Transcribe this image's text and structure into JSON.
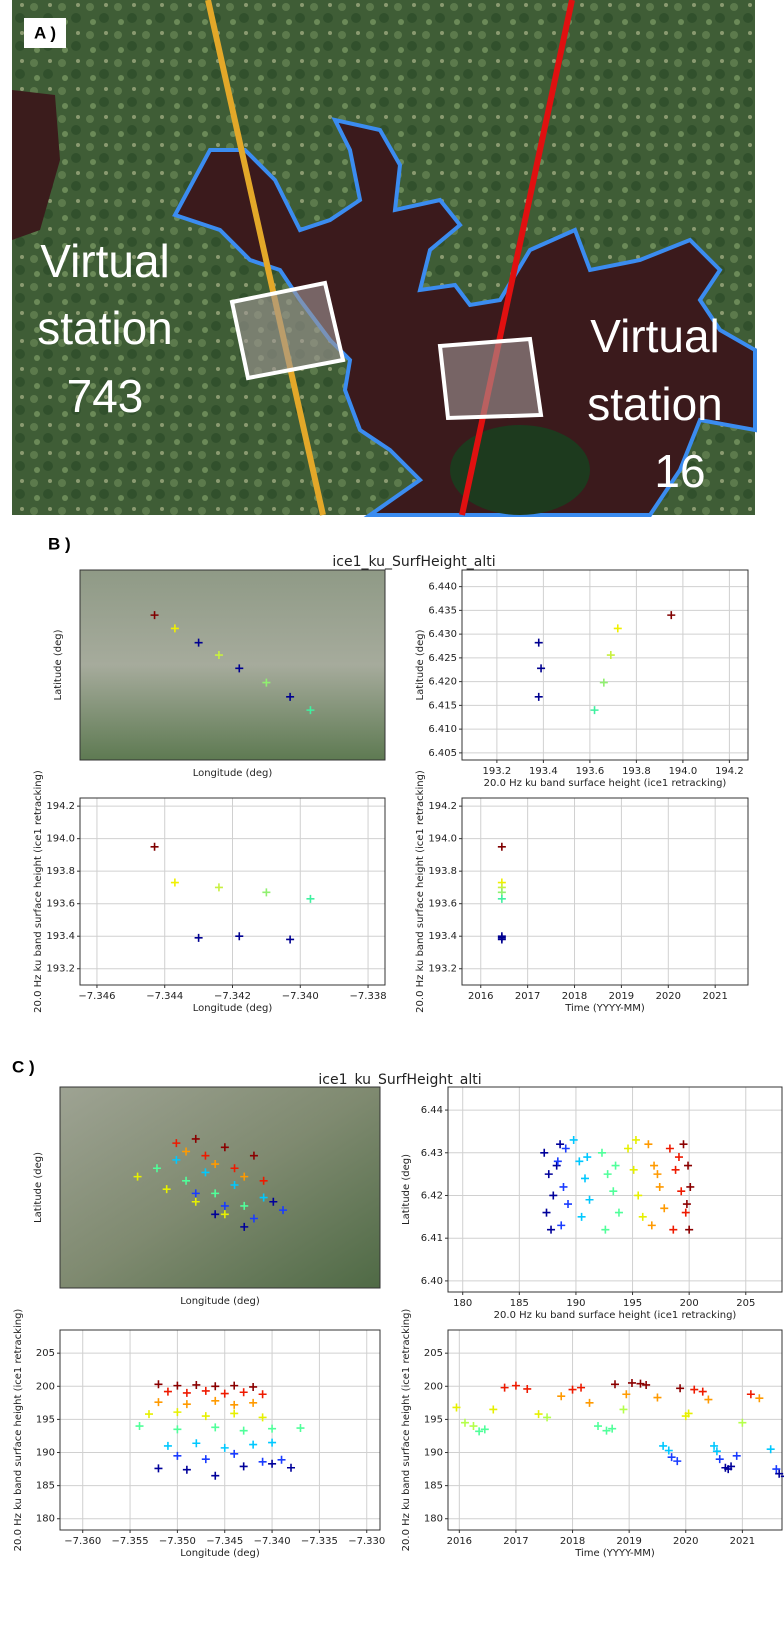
{
  "panel_a": {
    "label": "A )",
    "annotations": [
      [
        "Virtual",
        "station",
        "743"
      ],
      [
        "Virtual",
        "station",
        "16"
      ]
    ]
  },
  "panel_b": {
    "label": "B )",
    "title": "ice1_ku_SurfHeight_alti"
  },
  "panel_c": {
    "label": "C )",
    "title": "ice1_ku_SurfHeight_alti"
  },
  "chart_data": [
    {
      "type": "scatter",
      "xlabel": "Longitude (deg)",
      "ylabel": "Latitude (deg)",
      "xlim": [
        -7.3465,
        -7.3375
      ],
      "ylim": [
        6.4035,
        6.4435
      ],
      "grid": false,
      "series": [
        {
          "color": "#800000",
          "x": [
            -7.3443
          ],
          "values": [
            6.434
          ]
        },
        {
          "color": "#f0f000",
          "x": [
            -7.3437
          ],
          "values": [
            6.4312
          ]
        },
        {
          "color": "#000090",
          "x": [
            -7.343,
            -7.3418,
            -7.3403
          ],
          "values": [
            6.4282,
            6.4228,
            6.4168
          ]
        },
        {
          "color": "#c8f040",
          "x": [
            -7.3424
          ],
          "values": [
            6.4256
          ]
        },
        {
          "color": "#90f070",
          "x": [
            -7.341
          ],
          "values": [
            6.4198
          ]
        },
        {
          "color": "#40f0a0",
          "x": [
            -7.3397
          ],
          "values": [
            6.414
          ]
        }
      ]
    },
    {
      "type": "scatter",
      "xlabel": "20.0 Hz ku band surface height (ice1 retracking)",
      "ylabel": "Latitude (deg)",
      "xlim": [
        193.05,
        194.28
      ],
      "ylim": [
        6.4035,
        6.4435
      ],
      "grid": true,
      "xticks": [
        193.2,
        193.4,
        193.6,
        193.8,
        {
          "value": 194,
          "label": "194.0"
        },
        194.2
      ],
      "yticks": [
        6.405,
        {
          "value": 6.41,
          "label": "6.410"
        },
        6.415,
        {
          "value": 6.42,
          "label": "6.420"
        },
        6.425,
        {
          "value": 6.43,
          "label": "6.430"
        },
        6.435,
        {
          "value": 6.44,
          "label": "6.440"
        }
      ],
      "series": [
        {
          "color": "#800000",
          "x": [
            193.95
          ],
          "values": [
            6.434
          ]
        },
        {
          "color": "#f0f000",
          "x": [
            193.72
          ],
          "values": [
            6.4312
          ]
        },
        {
          "color": "#000090",
          "x": [
            193.38,
            193.39,
            193.38
          ],
          "values": [
            6.4282,
            6.4228,
            6.4168
          ]
        },
        {
          "color": "#c8f040",
          "x": [
            193.69
          ],
          "values": [
            6.4256
          ]
        },
        {
          "color": "#90f070",
          "x": [
            193.66
          ],
          "values": [
            6.4198
          ]
        },
        {
          "color": "#40f0a0",
          "x": [
            193.62
          ],
          "values": [
            6.414
          ]
        }
      ]
    },
    {
      "type": "scatter",
      "xlabel": "Longitude (deg)",
      "ylabel": "20.0 Hz ku band surface height (ice1 retracking)",
      "xlim": [
        -7.3465,
        -7.3375
      ],
      "ylim": [
        193.1,
        194.25
      ],
      "grid": true,
      "xticks": [
        {
          "value": -7.346,
          "label": "−7.346"
        },
        {
          "value": -7.344,
          "label": "−7.344"
        },
        {
          "value": -7.342,
          "label": "−7.342"
        },
        {
          "value": -7.34,
          "label": "−7.340"
        },
        {
          "value": -7.338,
          "label": "−7.338"
        }
      ],
      "yticks": [
        193.2,
        193.4,
        193.6,
        193.8,
        {
          "value": 194,
          "label": "194.0"
        },
        194.2
      ],
      "series": [
        {
          "color": "#800000",
          "x": [
            -7.3443
          ],
          "values": [
            193.95
          ]
        },
        {
          "color": "#f0f000",
          "x": [
            -7.3437
          ],
          "values": [
            193.73
          ]
        },
        {
          "color": "#000090",
          "x": [
            -7.343,
            -7.3418,
            -7.3403
          ],
          "values": [
            193.39,
            193.4,
            193.38
          ]
        },
        {
          "color": "#c8f040",
          "x": [
            -7.3424
          ],
          "values": [
            193.7
          ]
        },
        {
          "color": "#90f070",
          "x": [
            -7.341
          ],
          "values": [
            193.67
          ]
        },
        {
          "color": "#40f0a0",
          "x": [
            -7.3397
          ],
          "values": [
            193.63
          ]
        }
      ]
    },
    {
      "type": "scatter",
      "xlabel": "Time (YYYY-MM)",
      "ylabel": "20.0 Hz ku band surface height (ice1 retracking)",
      "xlim": [
        2015.6,
        2021.7
      ],
      "ylim": [
        193.1,
        194.25
      ],
      "grid": true,
      "xticks": [
        2016,
        2017,
        2018,
        2019,
        2020,
        2021
      ],
      "yticks": [
        193.2,
        193.4,
        193.6,
        193.8,
        {
          "value": 194,
          "label": "194.0"
        },
        194.2
      ],
      "series": [
        {
          "color": "#800000",
          "x": [
            2016.45
          ],
          "values": [
            193.95
          ]
        },
        {
          "color": "#f0f000",
          "x": [
            2016.45
          ],
          "values": [
            193.73
          ]
        },
        {
          "color": "#000090",
          "x": [
            2016.45,
            2016.45,
            2016.45
          ],
          "values": [
            193.39,
            193.4,
            193.38
          ]
        },
        {
          "color": "#c8f040",
          "x": [
            2016.45
          ],
          "values": [
            193.7
          ]
        },
        {
          "color": "#90f070",
          "x": [
            2016.45
          ],
          "values": [
            193.67
          ]
        },
        {
          "color": "#40f0a0",
          "x": [
            2016.45
          ],
          "values": [
            193.63
          ]
        }
      ]
    },
    {
      "type": "scatter",
      "xlabel": "Longitude (deg)",
      "ylabel": "Latitude (deg)",
      "xlim": [
        -7.362,
        -7.329
      ],
      "ylim": [
        6.3974,
        6.4454
      ],
      "grid": false,
      "series": [
        {
          "color": "#8b0000",
          "x": [
            -7.348,
            -7.345,
            -7.342
          ],
          "values": [
            6.433,
            6.431,
            6.429
          ]
        },
        {
          "color": "#ee1a00",
          "x": [
            -7.35,
            -7.347,
            -7.344,
            -7.341
          ],
          "values": [
            6.432,
            6.429,
            6.426,
            6.423
          ]
        },
        {
          "color": "#ff9a00",
          "x": [
            -7.349,
            -7.346,
            -7.343
          ],
          "values": [
            6.43,
            6.427,
            6.424
          ]
        },
        {
          "color": "#e6f000",
          "x": [
            -7.354,
            -7.351,
            -7.348,
            -7.345
          ],
          "values": [
            6.424,
            6.421,
            6.418,
            6.415
          ]
        },
        {
          "color": "#50ff9a",
          "x": [
            -7.352,
            -7.349,
            -7.346,
            -7.343
          ],
          "values": [
            6.426,
            6.423,
            6.42,
            6.417
          ]
        },
        {
          "color": "#00c8ff",
          "x": [
            -7.35,
            -7.347,
            -7.344,
            -7.341
          ],
          "values": [
            6.428,
            6.425,
            6.422,
            6.419
          ]
        },
        {
          "color": "#1a3cff",
          "x": [
            -7.348,
            -7.345,
            -7.342,
            -7.339
          ],
          "values": [
            6.42,
            6.417,
            6.414,
            6.416
          ]
        },
        {
          "color": "#00009a",
          "x": [
            -7.346,
            -7.343,
            -7.34
          ],
          "values": [
            6.415,
            6.412,
            6.418
          ]
        }
      ]
    },
    {
      "type": "scatter",
      "xlabel": "20.0 Hz ku band surface height (ice1 retracking)",
      "ylabel": "Latitude (deg)",
      "xlim": [
        178.7,
        208.2
      ],
      "ylim": [
        6.3974,
        6.4454
      ],
      "grid": true,
      "xticks": [
        180,
        185,
        190,
        195,
        200,
        205
      ],
      "yticks": [
        {
          "value": 6.4,
          "label": "6.40"
        },
        6.41,
        6.42,
        6.43,
        6.44
      ],
      "series": [
        {
          "color": "#00009a",
          "x": [
            187.2,
            187.6,
            188.0,
            187.4,
            188.3,
            187.8,
            188.6
          ],
          "values": [
            6.43,
            6.425,
            6.42,
            6.416,
            6.427,
            6.412,
            6.432
          ]
        },
        {
          "color": "#1a3cff",
          "x": [
            188.4,
            188.9,
            189.3,
            188.7,
            189.1
          ],
          "values": [
            6.428,
            6.422,
            6.418,
            6.413,
            6.431
          ]
        },
        {
          "color": "#00c8ff",
          "x": [
            189.8,
            190.3,
            190.8,
            191.2,
            190.5,
            191.0
          ],
          "values": [
            6.433,
            6.428,
            6.424,
            6.419,
            6.415,
            6.429
          ]
        },
        {
          "color": "#50ff9a",
          "x": [
            192.3,
            192.8,
            193.3,
            193.8,
            192.6,
            193.5
          ],
          "values": [
            6.43,
            6.425,
            6.421,
            6.416,
            6.412,
            6.427
          ]
        },
        {
          "color": "#e6f000",
          "x": [
            194.6,
            195.1,
            195.5,
            195.9,
            195.3
          ],
          "values": [
            6.431,
            6.426,
            6.42,
            6.415,
            6.433
          ]
        },
        {
          "color": "#ff9a00",
          "x": [
            196.4,
            196.9,
            197.4,
            197.8,
            196.7,
            197.2
          ],
          "values": [
            6.432,
            6.427,
            6.422,
            6.417,
            6.413,
            6.425
          ]
        },
        {
          "color": "#ee1a00",
          "x": [
            198.3,
            198.8,
            199.3,
            199.7,
            198.6,
            199.1
          ],
          "values": [
            6.431,
            6.426,
            6.421,
            6.416,
            6.412,
            6.429
          ]
        },
        {
          "color": "#8b0000",
          "x": [
            199.5,
            199.9,
            200.1,
            199.8,
            200.0
          ],
          "values": [
            6.432,
            6.427,
            6.422,
            6.418,
            6.412
          ]
        }
      ]
    },
    {
      "type": "scatter",
      "xlabel": "Longitude (deg)",
      "ylabel": "20.0 Hz ku band surface height (ice1 retracking)",
      "xlim": [
        -7.3624,
        -7.3286
      ],
      "ylim": [
        178.3,
        208.5
      ],
      "grid": true,
      "xticks": [
        {
          "value": -7.36,
          "label": "−7.360"
        },
        {
          "value": -7.355,
          "label": "−7.355"
        },
        {
          "value": -7.35,
          "label": "−7.350"
        },
        {
          "value": -7.345,
          "label": "−7.345"
        },
        {
          "value": -7.34,
          "label": "−7.340"
        },
        {
          "value": -7.335,
          "label": "−7.335"
        },
        {
          "value": -7.33,
          "label": "−7.330"
        }
      ],
      "yticks": [
        180,
        185,
        190,
        195,
        200,
        205
      ],
      "series": [
        {
          "color": "#8b0000",
          "x": [
            -7.352,
            -7.35,
            -7.348,
            -7.346,
            -7.344,
            -7.342
          ],
          "values": [
            200.3,
            200.1,
            200.2,
            200.0,
            200.1,
            199.9
          ]
        },
        {
          "color": "#ee1a00",
          "x": [
            -7.351,
            -7.349,
            -7.347,
            -7.345,
            -7.343,
            -7.341
          ],
          "values": [
            199.2,
            199.0,
            199.3,
            198.9,
            199.1,
            198.8
          ]
        },
        {
          "color": "#ff9a00",
          "x": [
            -7.352,
            -7.349,
            -7.346,
            -7.344,
            -7.342
          ],
          "values": [
            197.6,
            197.3,
            197.8,
            197.2,
            197.5
          ]
        },
        {
          "color": "#e6f000",
          "x": [
            -7.353,
            -7.35,
            -7.347,
            -7.344,
            -7.341
          ],
          "values": [
            195.8,
            196.1,
            195.5,
            195.9,
            195.3
          ]
        },
        {
          "color": "#50ff9a",
          "x": [
            -7.354,
            -7.35,
            -7.346,
            -7.343,
            -7.34,
            -7.337
          ],
          "values": [
            194.0,
            193.5,
            193.8,
            193.3,
            193.6,
            193.7
          ]
        },
        {
          "color": "#00c8ff",
          "x": [
            -7.351,
            -7.348,
            -7.345,
            -7.342,
            -7.34
          ],
          "values": [
            191.0,
            191.4,
            190.7,
            191.2,
            191.5
          ]
        },
        {
          "color": "#1a3cff",
          "x": [
            -7.35,
            -7.347,
            -7.344,
            -7.341,
            -7.339
          ],
          "values": [
            189.5,
            189.0,
            189.8,
            188.6,
            188.9
          ]
        },
        {
          "color": "#00009a",
          "x": [
            -7.352,
            -7.349,
            -7.346,
            -7.343,
            -7.34,
            -7.338
          ],
          "values": [
            187.6,
            187.4,
            186.5,
            187.9,
            188.3,
            187.7
          ]
        }
      ]
    },
    {
      "type": "scatter",
      "xlabel": "Time (YYYY-MM)",
      "ylabel": "20.0 Hz ku band surface height (ice1 retracking)",
      "xlim": [
        2015.8,
        2021.7
      ],
      "ylim": [
        178.3,
        208.5
      ],
      "grid": true,
      "xticks": [
        2016,
        2017,
        2018,
        2019,
        2020,
        2021
      ],
      "yticks": [
        180,
        185,
        190,
        195,
        200,
        205
      ],
      "series": [
        {
          "color": "#e6f000",
          "x": [
            2015.95,
            2016.6,
            2017.4,
            2020.0,
            2020.05
          ],
          "values": [
            196.8,
            196.5,
            195.8,
            195.5,
            195.9
          ]
        },
        {
          "color": "#b4ff4a",
          "x": [
            2016.1,
            2016.25,
            2017.55,
            2018.9,
            2021.0
          ],
          "values": [
            194.5,
            194.0,
            195.3,
            196.5,
            194.5
          ]
        },
        {
          "color": "#50ff9a",
          "x": [
            2016.35,
            2016.45,
            2018.45,
            2018.6,
            2018.7
          ],
          "values": [
            193.2,
            193.5,
            194.0,
            193.3,
            193.6
          ]
        },
        {
          "color": "#ff9a00",
          "x": [
            2017.8,
            2018.3,
            2018.95,
            2019.5,
            2020.4,
            2021.3
          ],
          "values": [
            198.5,
            197.5,
            198.8,
            198.3,
            198.0,
            198.2
          ]
        },
        {
          "color": "#ee1a00",
          "x": [
            2016.8,
            2017.0,
            2017.2,
            2018.0,
            2018.15,
            2020.15,
            2020.3,
            2021.15
          ],
          "values": [
            199.8,
            200.1,
            199.6,
            199.5,
            199.8,
            199.5,
            199.2,
            198.8
          ]
        },
        {
          "color": "#8b0000",
          "x": [
            2018.75,
            2019.05,
            2019.2,
            2019.3,
            2019.9
          ],
          "values": [
            200.3,
            200.5,
            200.4,
            200.2,
            199.7
          ]
        },
        {
          "color": "#00c8ff",
          "x": [
            2019.6,
            2019.7,
            2020.5,
            2020.55,
            2021.5
          ],
          "values": [
            191.0,
            190.3,
            191.0,
            190.2,
            190.5
          ]
        },
        {
          "color": "#1a3cff",
          "x": [
            2019.75,
            2019.85,
            2020.6,
            2020.9,
            2021.6
          ],
          "values": [
            189.3,
            188.7,
            189.0,
            189.5,
            187.5
          ]
        },
        {
          "color": "#00009a",
          "x": [
            2020.7,
            2020.75,
            2020.8,
            2021.65,
            2021.75
          ],
          "values": [
            187.7,
            187.5,
            187.9,
            186.8,
            186.4
          ]
        }
      ]
    }
  ]
}
